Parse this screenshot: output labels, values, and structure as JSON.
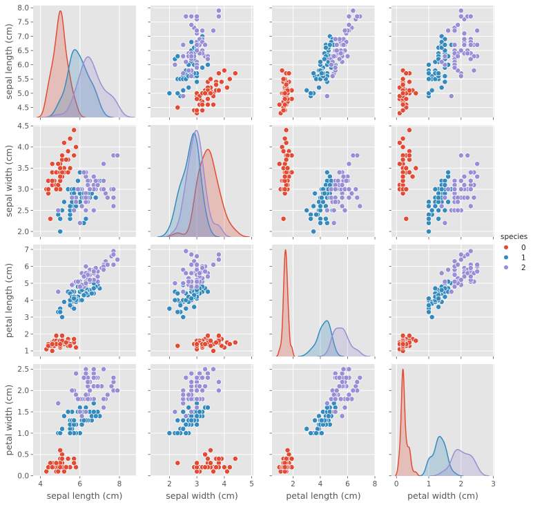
{
  "chart_data": {
    "type": "scatter",
    "kind": "pairplot",
    "title": "",
    "variables": [
      "sepal length (cm)",
      "sepal width (cm)",
      "petal length (cm)",
      "petal width (cm)"
    ],
    "ranges": [
      [
        3.63,
        8.84
      ],
      [
        1.31,
        5.06
      ],
      [
        0.46,
        8.0
      ],
      [
        -0.155,
        3.03
      ]
    ],
    "row_ranges": [
      [
        4.15,
        8.08
      ],
      [
        1.87,
        4.52
      ],
      [
        0.67,
        7.29
      ],
      [
        -0.005,
        2.62
      ]
    ],
    "x_ticks": [
      [
        "4",
        "6",
        "8"
      ],
      [
        "2",
        "3",
        "4",
        "5"
      ],
      [
        "2",
        "4",
        "6",
        "8"
      ],
      [
        "0",
        "1",
        "2",
        "3"
      ]
    ],
    "y_ticks": [
      [
        "4.5",
        "5.0",
        "5.5",
        "6.0",
        "6.5",
        "7.0",
        "7.5",
        "8.0"
      ],
      [
        "2.0",
        "2.5",
        "3.0",
        "3.5",
        "4.0",
        "4.5"
      ],
      [
        "1",
        "2",
        "3",
        "4",
        "5",
        "6",
        "7"
      ],
      [
        "0.0",
        "0.5",
        "1.0",
        "1.5",
        "2.0",
        "2.5"
      ]
    ],
    "diagonal": "kde",
    "grid": true,
    "legend": {
      "title": "species",
      "placement": "right",
      "entries": [
        "0",
        "1",
        "2"
      ]
    },
    "colors": [
      "#E24A33",
      "#348ABD",
      "#988ED5"
    ],
    "series": [
      {
        "name": "0",
        "values": [
          [
            5.1,
            3.5,
            1.4,
            0.2
          ],
          [
            4.9,
            3.0,
            1.4,
            0.2
          ],
          [
            4.7,
            3.2,
            1.3,
            0.2
          ],
          [
            4.6,
            3.1,
            1.5,
            0.2
          ],
          [
            5.0,
            3.6,
            1.4,
            0.2
          ],
          [
            5.4,
            3.9,
            1.7,
            0.4
          ],
          [
            4.6,
            3.4,
            1.4,
            0.3
          ],
          [
            5.0,
            3.4,
            1.5,
            0.2
          ],
          [
            4.4,
            2.9,
            1.4,
            0.2
          ],
          [
            4.9,
            3.1,
            1.5,
            0.1
          ],
          [
            5.4,
            3.7,
            1.5,
            0.2
          ],
          [
            4.8,
            3.4,
            1.6,
            0.2
          ],
          [
            4.8,
            3.0,
            1.4,
            0.1
          ],
          [
            4.3,
            3.0,
            1.1,
            0.1
          ],
          [
            5.8,
            4.0,
            1.2,
            0.2
          ],
          [
            5.7,
            4.4,
            1.5,
            0.4
          ],
          [
            5.4,
            3.9,
            1.3,
            0.4
          ],
          [
            5.1,
            3.5,
            1.4,
            0.3
          ],
          [
            5.7,
            3.8,
            1.7,
            0.3
          ],
          [
            5.1,
            3.8,
            1.5,
            0.3
          ],
          [
            5.4,
            3.4,
            1.7,
            0.2
          ],
          [
            5.1,
            3.7,
            1.5,
            0.4
          ],
          [
            4.6,
            3.6,
            1.0,
            0.2
          ],
          [
            5.1,
            3.3,
            1.7,
            0.5
          ],
          [
            4.8,
            3.4,
            1.9,
            0.2
          ],
          [
            5.0,
            3.0,
            1.6,
            0.2
          ],
          [
            5.0,
            3.4,
            1.6,
            0.4
          ],
          [
            5.2,
            3.5,
            1.5,
            0.2
          ],
          [
            5.2,
            3.4,
            1.4,
            0.2
          ],
          [
            4.7,
            3.2,
            1.6,
            0.2
          ],
          [
            4.8,
            3.1,
            1.6,
            0.2
          ],
          [
            5.4,
            3.4,
            1.5,
            0.4
          ],
          [
            5.2,
            4.1,
            1.5,
            0.1
          ],
          [
            5.5,
            4.2,
            1.4,
            0.2
          ],
          [
            4.9,
            3.1,
            1.5,
            0.2
          ],
          [
            5.0,
            3.2,
            1.2,
            0.2
          ],
          [
            5.5,
            3.5,
            1.3,
            0.2
          ],
          [
            4.9,
            3.6,
            1.4,
            0.1
          ],
          [
            4.4,
            3.0,
            1.3,
            0.2
          ],
          [
            5.1,
            3.4,
            1.5,
            0.2
          ],
          [
            5.0,
            3.5,
            1.3,
            0.3
          ],
          [
            4.5,
            2.3,
            1.3,
            0.3
          ],
          [
            4.4,
            3.2,
            1.3,
            0.2
          ],
          [
            5.0,
            3.5,
            1.6,
            0.6
          ],
          [
            5.1,
            3.8,
            1.9,
            0.4
          ],
          [
            4.8,
            3.0,
            1.4,
            0.3
          ],
          [
            5.1,
            3.8,
            1.6,
            0.2
          ],
          [
            4.6,
            3.2,
            1.4,
            0.2
          ],
          [
            5.3,
            3.7,
            1.5,
            0.2
          ],
          [
            5.0,
            3.3,
            1.4,
            0.2
          ]
        ]
      },
      {
        "name": "1",
        "values": [
          [
            7.0,
            3.2,
            4.7,
            1.4
          ],
          [
            6.4,
            3.2,
            4.5,
            1.5
          ],
          [
            6.9,
            3.1,
            4.9,
            1.5
          ],
          [
            5.5,
            2.3,
            4.0,
            1.3
          ],
          [
            6.5,
            2.8,
            4.6,
            1.5
          ],
          [
            5.7,
            2.8,
            4.5,
            1.3
          ],
          [
            6.3,
            3.3,
            4.7,
            1.6
          ],
          [
            4.9,
            2.4,
            3.3,
            1.0
          ],
          [
            6.6,
            2.9,
            4.6,
            1.3
          ],
          [
            5.2,
            2.7,
            3.9,
            1.4
          ],
          [
            5.0,
            2.0,
            3.5,
            1.0
          ],
          [
            5.9,
            3.0,
            4.2,
            1.5
          ],
          [
            6.0,
            2.2,
            4.0,
            1.0
          ],
          [
            6.1,
            2.9,
            4.7,
            1.4
          ],
          [
            5.6,
            2.9,
            3.6,
            1.3
          ],
          [
            6.7,
            3.1,
            4.4,
            1.4
          ],
          [
            5.6,
            3.0,
            4.5,
            1.5
          ],
          [
            5.8,
            2.7,
            4.1,
            1.0
          ],
          [
            6.2,
            2.2,
            4.5,
            1.5
          ],
          [
            5.6,
            2.5,
            3.9,
            1.1
          ],
          [
            5.9,
            3.2,
            4.8,
            1.8
          ],
          [
            6.1,
            2.8,
            4.0,
            1.3
          ],
          [
            6.3,
            2.5,
            4.9,
            1.5
          ],
          [
            6.1,
            2.8,
            4.7,
            1.2
          ],
          [
            6.4,
            2.9,
            4.3,
            1.3
          ],
          [
            6.6,
            3.0,
            4.4,
            1.4
          ],
          [
            6.8,
            2.8,
            4.8,
            1.4
          ],
          [
            6.7,
            3.0,
            5.0,
            1.7
          ],
          [
            6.0,
            2.9,
            4.5,
            1.5
          ],
          [
            5.7,
            2.6,
            3.5,
            1.0
          ],
          [
            5.5,
            2.4,
            3.8,
            1.1
          ],
          [
            5.5,
            2.4,
            3.7,
            1.0
          ],
          [
            5.8,
            2.7,
            3.9,
            1.2
          ],
          [
            6.0,
            2.7,
            5.1,
            1.6
          ],
          [
            5.4,
            3.0,
            4.5,
            1.5
          ],
          [
            6.0,
            3.4,
            4.5,
            1.6
          ],
          [
            6.7,
            3.1,
            4.7,
            1.5
          ],
          [
            6.3,
            2.3,
            4.4,
            1.3
          ],
          [
            5.6,
            3.0,
            4.1,
            1.3
          ],
          [
            5.5,
            2.5,
            4.0,
            1.3
          ],
          [
            5.5,
            2.6,
            4.4,
            1.2
          ],
          [
            6.1,
            3.0,
            4.6,
            1.4
          ],
          [
            5.8,
            2.6,
            4.0,
            1.2
          ],
          [
            5.0,
            2.3,
            3.3,
            1.0
          ],
          [
            5.6,
            2.7,
            4.2,
            1.3
          ],
          [
            5.7,
            3.0,
            4.2,
            1.2
          ],
          [
            5.7,
            2.9,
            4.2,
            1.3
          ],
          [
            6.2,
            2.9,
            4.3,
            1.3
          ],
          [
            5.1,
            2.5,
            3.0,
            1.1
          ],
          [
            5.7,
            2.8,
            4.1,
            1.3
          ]
        ]
      },
      {
        "name": "2",
        "values": [
          [
            6.3,
            3.3,
            6.0,
            2.5
          ],
          [
            5.8,
            2.7,
            5.1,
            1.9
          ],
          [
            7.1,
            3.0,
            5.9,
            2.1
          ],
          [
            6.3,
            2.9,
            5.6,
            1.8
          ],
          [
            6.5,
            3.0,
            5.8,
            2.2
          ],
          [
            7.6,
            3.0,
            6.6,
            2.1
          ],
          [
            4.9,
            2.5,
            4.5,
            1.7
          ],
          [
            7.3,
            2.9,
            6.3,
            1.8
          ],
          [
            6.7,
            2.5,
            5.8,
            1.8
          ],
          [
            7.2,
            3.6,
            6.1,
            2.5
          ],
          [
            6.5,
            3.2,
            5.1,
            2.0
          ],
          [
            6.4,
            2.7,
            5.3,
            1.9
          ],
          [
            6.8,
            3.0,
            5.5,
            2.1
          ],
          [
            5.7,
            2.5,
            5.0,
            2.0
          ],
          [
            5.8,
            2.8,
            5.1,
            2.4
          ],
          [
            6.4,
            3.2,
            5.3,
            2.3
          ],
          [
            6.5,
            3.0,
            5.5,
            1.8
          ],
          [
            7.7,
            3.8,
            6.7,
            2.2
          ],
          [
            7.7,
            2.6,
            6.9,
            2.3
          ],
          [
            6.0,
            2.2,
            5.0,
            1.5
          ],
          [
            6.9,
            3.2,
            5.7,
            2.3
          ],
          [
            5.6,
            2.8,
            4.9,
            2.0
          ],
          [
            7.7,
            2.8,
            6.7,
            2.0
          ],
          [
            6.3,
            2.7,
            4.9,
            1.8
          ],
          [
            6.7,
            3.3,
            5.7,
            2.1
          ],
          [
            7.2,
            3.2,
            6.0,
            1.8
          ],
          [
            6.2,
            2.8,
            4.8,
            1.8
          ],
          [
            6.1,
            3.0,
            4.9,
            1.8
          ],
          [
            6.4,
            2.8,
            5.6,
            2.1
          ],
          [
            7.2,
            3.0,
            5.8,
            1.6
          ],
          [
            7.4,
            2.8,
            6.1,
            1.9
          ],
          [
            7.9,
            3.8,
            6.4,
            2.0
          ],
          [
            6.4,
            2.8,
            5.6,
            2.2
          ],
          [
            6.3,
            2.8,
            5.1,
            1.5
          ],
          [
            6.1,
            2.6,
            5.6,
            1.4
          ],
          [
            7.7,
            3.0,
            6.1,
            2.3
          ],
          [
            6.3,
            3.4,
            5.6,
            2.4
          ],
          [
            6.4,
            3.1,
            5.5,
            1.8
          ],
          [
            6.0,
            3.0,
            4.8,
            1.8
          ],
          [
            6.9,
            3.1,
            5.4,
            2.1
          ],
          [
            6.7,
            3.1,
            5.6,
            2.4
          ],
          [
            6.9,
            3.1,
            5.1,
            2.3
          ],
          [
            5.8,
            2.7,
            5.1,
            1.9
          ],
          [
            6.8,
            3.2,
            5.9,
            2.3
          ],
          [
            6.7,
            3.3,
            5.7,
            2.5
          ],
          [
            6.7,
            3.0,
            5.2,
            2.3
          ],
          [
            6.3,
            2.5,
            5.0,
            1.9
          ],
          [
            6.5,
            3.0,
            5.2,
            2.0
          ],
          [
            6.2,
            3.4,
            5.4,
            2.3
          ],
          [
            5.9,
            3.0,
            5.1,
            1.8
          ]
        ]
      }
    ]
  }
}
